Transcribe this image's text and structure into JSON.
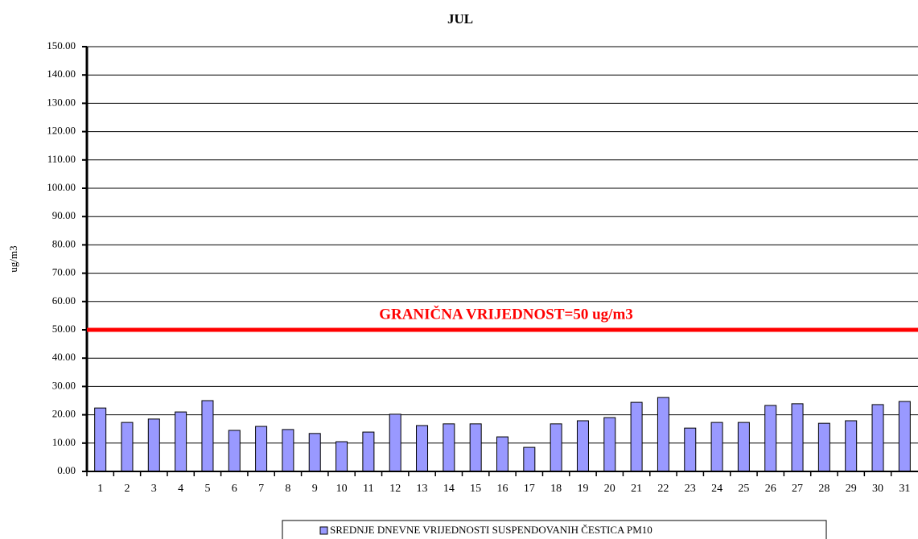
{
  "chart_data": {
    "type": "bar",
    "title": "JUL",
    "y_label": "ug/m3",
    "categories": [
      "1",
      "2",
      "3",
      "4",
      "5",
      "6",
      "7",
      "8",
      "9",
      "10",
      "11",
      "12",
      "13",
      "14",
      "15",
      "16",
      "17",
      "18",
      "19",
      "20",
      "21",
      "22",
      "23",
      "24",
      "25",
      "26",
      "27",
      "28",
      "29",
      "30",
      "31"
    ],
    "series": [
      {
        "name": "SREDNJE DNEVNE VRIJEDNOSTI SUSPENDOVANIH ČESTICA PM10",
        "color": "#9999ff",
        "values": [
          22.4,
          17.3,
          18.5,
          21.0,
          25.0,
          14.5,
          15.9,
          14.8,
          13.4,
          10.5,
          13.9,
          20.2,
          16.2,
          16.8,
          16.8,
          12.2,
          8.5,
          16.8,
          17.9,
          19.0,
          24.4,
          26.1,
          15.3,
          17.3,
          17.3,
          23.3,
          23.9,
          17.0,
          17.9,
          23.6,
          24.7
        ]
      }
    ],
    "ylim": [
      0,
      150
    ],
    "yticks": [
      {
        "value": 0,
        "label": "0.00"
      },
      {
        "value": 10,
        "label": "10.00"
      },
      {
        "value": 20,
        "label": "20.00"
      },
      {
        "value": 30,
        "label": "30.00"
      },
      {
        "value": 40,
        "label": "40.00"
      },
      {
        "value": 50,
        "label": "50.00"
      },
      {
        "value": 60,
        "label": "60.00"
      },
      {
        "value": 70,
        "label": "70.00"
      },
      {
        "value": 80,
        "label": "80.00"
      },
      {
        "value": 90,
        "label": "90.00"
      },
      {
        "value": 100,
        "label": "100.00"
      },
      {
        "value": 110,
        "label": "110.00"
      },
      {
        "value": 120,
        "label": "120.00"
      },
      {
        "value": 130,
        "label": "130.00"
      },
      {
        "value": 140,
        "label": "140.00"
      },
      {
        "value": 150,
        "label": "150.00"
      }
    ],
    "grid": true,
    "threshold": {
      "value": 50,
      "label": "GRANIČNA VRIJEDNOST=50 ug/m3",
      "color": "#ff0000"
    },
    "legend": "bottom"
  }
}
